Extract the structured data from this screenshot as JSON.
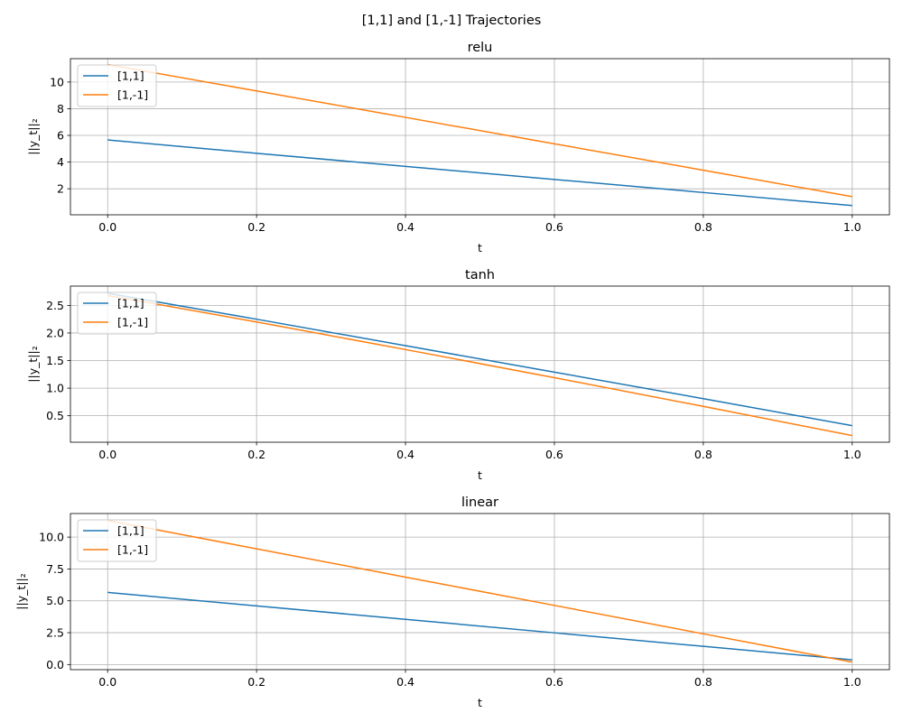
{
  "figure": {
    "suptitle": "[1,1] and [1,-1] Trajectories"
  },
  "chart_data": [
    {
      "type": "line",
      "title": "relu",
      "xlabel": "t",
      "ylabel": "||y_t||₂",
      "xlim": [
        -0.05,
        1.05
      ],
      "ylim": [
        0.05,
        11.75
      ],
      "xticks": [
        0.0,
        0.2,
        0.4,
        0.6,
        0.8,
        1.0
      ],
      "xtick_labels": [
        "0.0",
        "0.2",
        "0.4",
        "0.6",
        "0.8",
        "1.0"
      ],
      "yticks": [
        2,
        4,
        6,
        8,
        10
      ],
      "ytick_labels": [
        "2",
        "4",
        "6",
        "8",
        "10"
      ],
      "grid": true,
      "legend_position": "upper-left",
      "series": [
        {
          "name": "[1,1]",
          "color": "#1f77b4",
          "x": [
            0.0,
            0.2,
            0.4,
            0.6,
            0.8,
            1.0
          ],
          "y": [
            5.66,
            4.66,
            3.68,
            2.7,
            1.72,
            0.74
          ]
        },
        {
          "name": "[1,-1]",
          "color": "#ff7f0e",
          "x": [
            0.0,
            0.2,
            0.4,
            0.6,
            0.8,
            1.0
          ],
          "y": [
            11.31,
            9.33,
            7.35,
            5.37,
            3.39,
            1.41
          ]
        }
      ]
    },
    {
      "type": "line",
      "title": "tanh",
      "xlabel": "t",
      "ylabel": "||y_t||₂",
      "xlim": [
        -0.05,
        1.05
      ],
      "ylim": [
        0.02,
        2.85
      ],
      "xticks": [
        0.0,
        0.2,
        0.4,
        0.6,
        0.8,
        1.0
      ],
      "xtick_labels": [
        "0.0",
        "0.2",
        "0.4",
        "0.6",
        "0.8",
        "1.0"
      ],
      "yticks": [
        0.5,
        1.0,
        1.5,
        2.0,
        2.5
      ],
      "ytick_labels": [
        "0.5",
        "1.0",
        "1.5",
        "2.0",
        "2.5"
      ],
      "grid": true,
      "legend_position": "upper-left",
      "series": [
        {
          "name": "[1,1]",
          "color": "#1f77b4",
          "x": [
            0.0,
            0.2,
            0.4,
            0.6,
            0.8,
            1.0
          ],
          "y": [
            2.72,
            2.25,
            1.77,
            1.29,
            0.81,
            0.32
          ]
        },
        {
          "name": "[1,-1]",
          "color": "#ff7f0e",
          "x": [
            0.0,
            0.2,
            0.4,
            0.6,
            0.8,
            1.0
          ],
          "y": [
            2.68,
            2.2,
            1.7,
            1.19,
            0.67,
            0.14
          ]
        }
      ]
    },
    {
      "type": "line",
      "title": "linear",
      "xlabel": "t",
      "ylabel": "||y_t||₂",
      "xlim": [
        -0.05,
        1.05
      ],
      "ylim": [
        -0.4,
        11.85
      ],
      "xticks": [
        0.0,
        0.2,
        0.4,
        0.6,
        0.8,
        1.0
      ],
      "xtick_labels": [
        "0.0",
        "0.2",
        "0.4",
        "0.6",
        "0.8",
        "1.0"
      ],
      "yticks": [
        0.0,
        2.5,
        5.0,
        7.5,
        10.0
      ],
      "ytick_labels": [
        "0.0",
        "2.5",
        "5.0",
        "7.5",
        "10.0"
      ],
      "grid": true,
      "legend_position": "upper-left",
      "series": [
        {
          "name": "[1,1]",
          "color": "#1f77b4",
          "x": [
            0.0,
            0.2,
            0.4,
            0.6,
            0.8,
            1.0
          ],
          "y": [
            5.66,
            4.6,
            3.55,
            2.49,
            1.43,
            0.37
          ]
        },
        {
          "name": "[1,-1]",
          "color": "#ff7f0e",
          "x": [
            0.0,
            0.2,
            0.4,
            0.6,
            0.8,
            1.0
          ],
          "y": [
            11.31,
            9.08,
            6.86,
            4.64,
            2.41,
            0.19
          ]
        }
      ]
    }
  ]
}
